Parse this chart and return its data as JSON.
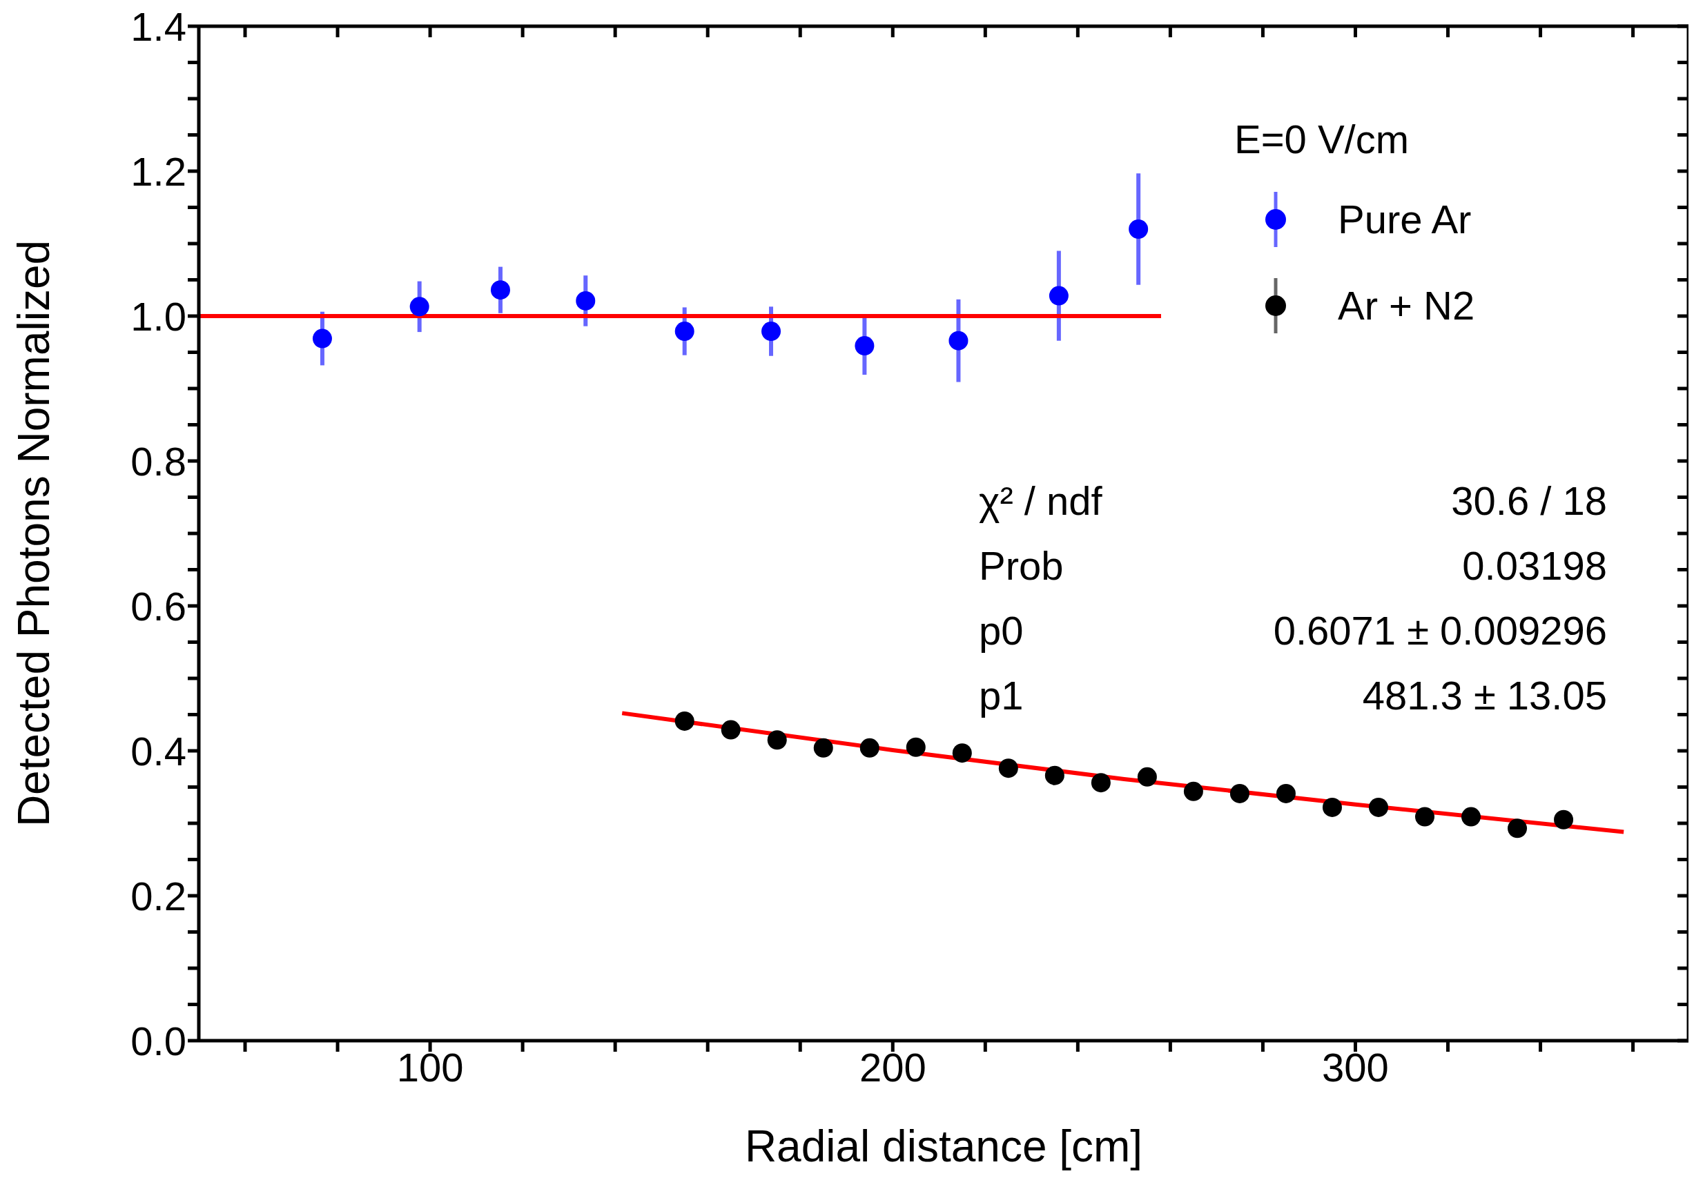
{
  "chart_data": {
    "type": "scatter",
    "xlabel": "Radial distance [cm]",
    "ylabel": "Detected Photons Normalized",
    "legend_title": "E=0 V/cm",
    "legend": "top right",
    "grid": false,
    "marker": "circle",
    "xlim": [
      50,
      372
    ],
    "ylim": [
      0,
      1.4
    ],
    "xticks": [
      {
        "value": 60,
        "label": null
      },
      {
        "value": 80,
        "label": null
      },
      100,
      {
        "value": 120,
        "label": null
      },
      {
        "value": 140,
        "label": null
      },
      {
        "value": 160,
        "label": null
      },
      {
        "value": 180,
        "label": null
      },
      200,
      {
        "value": 220,
        "label": null
      },
      {
        "value": 240,
        "label": null
      },
      {
        "value": 260,
        "label": null
      },
      {
        "value": 280,
        "label": null
      },
      300,
      {
        "value": 320,
        "label": null
      },
      {
        "value": 340,
        "label": null
      },
      {
        "value": 360,
        "label": null
      }
    ],
    "yticks": [
      {
        "value": 0,
        "label": "0.0"
      },
      {
        "value": 0.05,
        "label": null
      },
      {
        "value": 0.1,
        "label": null
      },
      {
        "value": 0.15,
        "label": null
      },
      0.2,
      {
        "value": 0.25,
        "label": null
      },
      {
        "value": 0.3,
        "label": null
      },
      {
        "value": 0.35,
        "label": null
      },
      0.4,
      {
        "value": 0.45,
        "label": null
      },
      {
        "value": 0.5,
        "label": null
      },
      {
        "value": 0.55,
        "label": null
      },
      0.6,
      {
        "value": 0.65,
        "label": null
      },
      {
        "value": 0.7,
        "label": null
      },
      {
        "value": 0.75,
        "label": null
      },
      0.8,
      {
        "value": 0.85,
        "label": null
      },
      {
        "value": 0.9,
        "label": null
      },
      {
        "value": 0.95,
        "label": null
      },
      {
        "value": 1,
        "label": "1.0"
      },
      {
        "value": 1.05,
        "label": null
      },
      {
        "value": 1.1,
        "label": null
      },
      {
        "value": 1.15,
        "label": null
      },
      1.2,
      {
        "value": 1.25,
        "label": null
      },
      {
        "value": 1.3,
        "label": null
      },
      {
        "value": 1.35,
        "label": null
      },
      1.4
    ],
    "series": [
      {
        "name": "Pure Ar",
        "color": "#0000ff",
        "x": [
          76.7,
          97.7,
          115.2,
          133.6,
          155,
          173.7,
          193.9,
          214.2,
          235.9,
          253.1
        ],
        "values": [
          0.969,
          1.013,
          1.036,
          1.021,
          0.979,
          0.979,
          0.959,
          0.966,
          1.028,
          1.12
        ],
        "errors": [
          0.037,
          0.035,
          0.032,
          0.035,
          0.033,
          0.034,
          0.04,
          0.057,
          0.062,
          0.077
        ]
      },
      {
        "name": "Ar + N2",
        "color": "#000000",
        "x": [
          155,
          165,
          175,
          185,
          195,
          205,
          215,
          225,
          235,
          245,
          255,
          265,
          275,
          285,
          295,
          305,
          315,
          325,
          335,
          345
        ],
        "values": [
          0.441,
          0.429,
          0.415,
          0.404,
          0.404,
          0.405,
          0.397,
          0.376,
          0.366,
          0.356,
          0.364,
          0.344,
          0.341,
          0.341,
          0.322,
          0.322,
          0.309,
          0.309,
          0.293,
          0.305
        ]
      },
      {
        "type": "line",
        "color": "#ff0000",
        "marker": "none",
        "x": [
          50,
          258
        ],
        "values": [
          1,
          1
        ]
      },
      {
        "type": "line",
        "color": "#ff0000",
        "marker": "none",
        "x": [
          141.5,
          200,
          250,
          300,
          358
        ],
        "values": [
          0.452,
          0.401,
          0.361,
          0.326,
          0.288
        ]
      }
    ],
    "annotations": [
      "χ² / ndf",
      "30.6 / 18",
      "Prob",
      "0.03198",
      "p0",
      "0.6071 ± 0.009296",
      "p1",
      "481.3 ± 13.05"
    ]
  }
}
